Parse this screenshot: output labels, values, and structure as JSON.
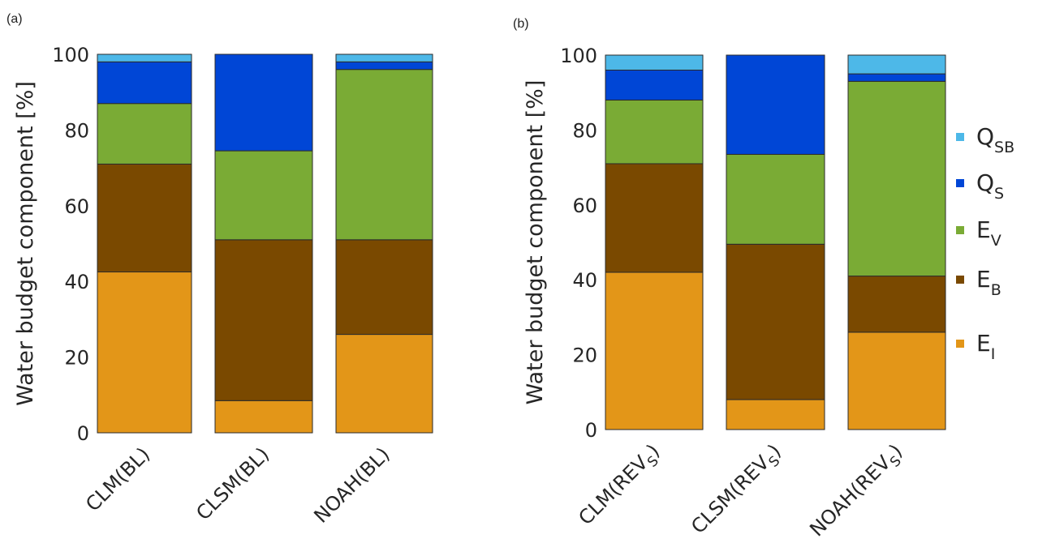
{
  "chart_data": [
    {
      "panel_label": "(a)",
      "type": "bar",
      "stacked": true,
      "ylabel": "Water budget component [%]",
      "ylim": [
        0,
        100
      ],
      "yticks": [
        0,
        20,
        40,
        60,
        80,
        100
      ],
      "categories": [
        {
          "base": "CLM(BL)",
          "sub": ""
        },
        {
          "base": "CLSM(BL)",
          "sub": ""
        },
        {
          "base": "NOAH(BL)",
          "sub": ""
        }
      ],
      "series": [
        {
          "key": "E_I",
          "values": [
            42.5,
            8.5,
            26
          ]
        },
        {
          "key": "E_B",
          "values": [
            28.5,
            42.5,
            25
          ]
        },
        {
          "key": "E_V",
          "values": [
            16,
            23.5,
            45
          ]
        },
        {
          "key": "Q_S",
          "values": [
            11,
            25.5,
            2
          ]
        },
        {
          "key": "Q_SB",
          "values": [
            2,
            0,
            2
          ]
        }
      ]
    },
    {
      "panel_label": "(b)",
      "type": "bar",
      "stacked": true,
      "ylabel": "Water budget component [%]",
      "ylim": [
        0,
        100
      ],
      "yticks": [
        0,
        20,
        40,
        60,
        80,
        100
      ],
      "categories": [
        {
          "base": "CLM(REV",
          "sub": "S",
          "tail": ")"
        },
        {
          "base": "CLSM(REV",
          "sub": "S",
          "tail": ")"
        },
        {
          "base": "NOAH(REV",
          "sub": "S",
          "tail": ")"
        }
      ],
      "series": [
        {
          "key": "E_I",
          "values": [
            42,
            8,
            26
          ]
        },
        {
          "key": "E_B",
          "values": [
            29,
            41.5,
            15
          ]
        },
        {
          "key": "E_V",
          "values": [
            17,
            24,
            52
          ]
        },
        {
          "key": "Q_S",
          "values": [
            8,
            26.5,
            2
          ]
        },
        {
          "key": "Q_SB",
          "values": [
            4,
            0,
            5
          ]
        }
      ]
    }
  ],
  "legend": [
    {
      "key": "Q_SB",
      "main": "Q",
      "sub": "SB",
      "color": "#4db8e8"
    },
    {
      "key": "Q_S",
      "main": "Q",
      "sub": "S",
      "color": "#0046d6"
    },
    {
      "key": "E_V",
      "main": "E",
      "sub": "V",
      "color": "#7aab35"
    },
    {
      "key": "E_B",
      "main": "E",
      "sub": "B",
      "color": "#7a4900"
    },
    {
      "key": "E_I",
      "main": "E",
      "sub": "I",
      "color": "#e39618"
    }
  ],
  "colors": {
    "E_I": "#e39618",
    "E_B": "#7a4900",
    "E_V": "#7aab35",
    "Q_S": "#0046d6",
    "Q_SB": "#4db8e8"
  }
}
